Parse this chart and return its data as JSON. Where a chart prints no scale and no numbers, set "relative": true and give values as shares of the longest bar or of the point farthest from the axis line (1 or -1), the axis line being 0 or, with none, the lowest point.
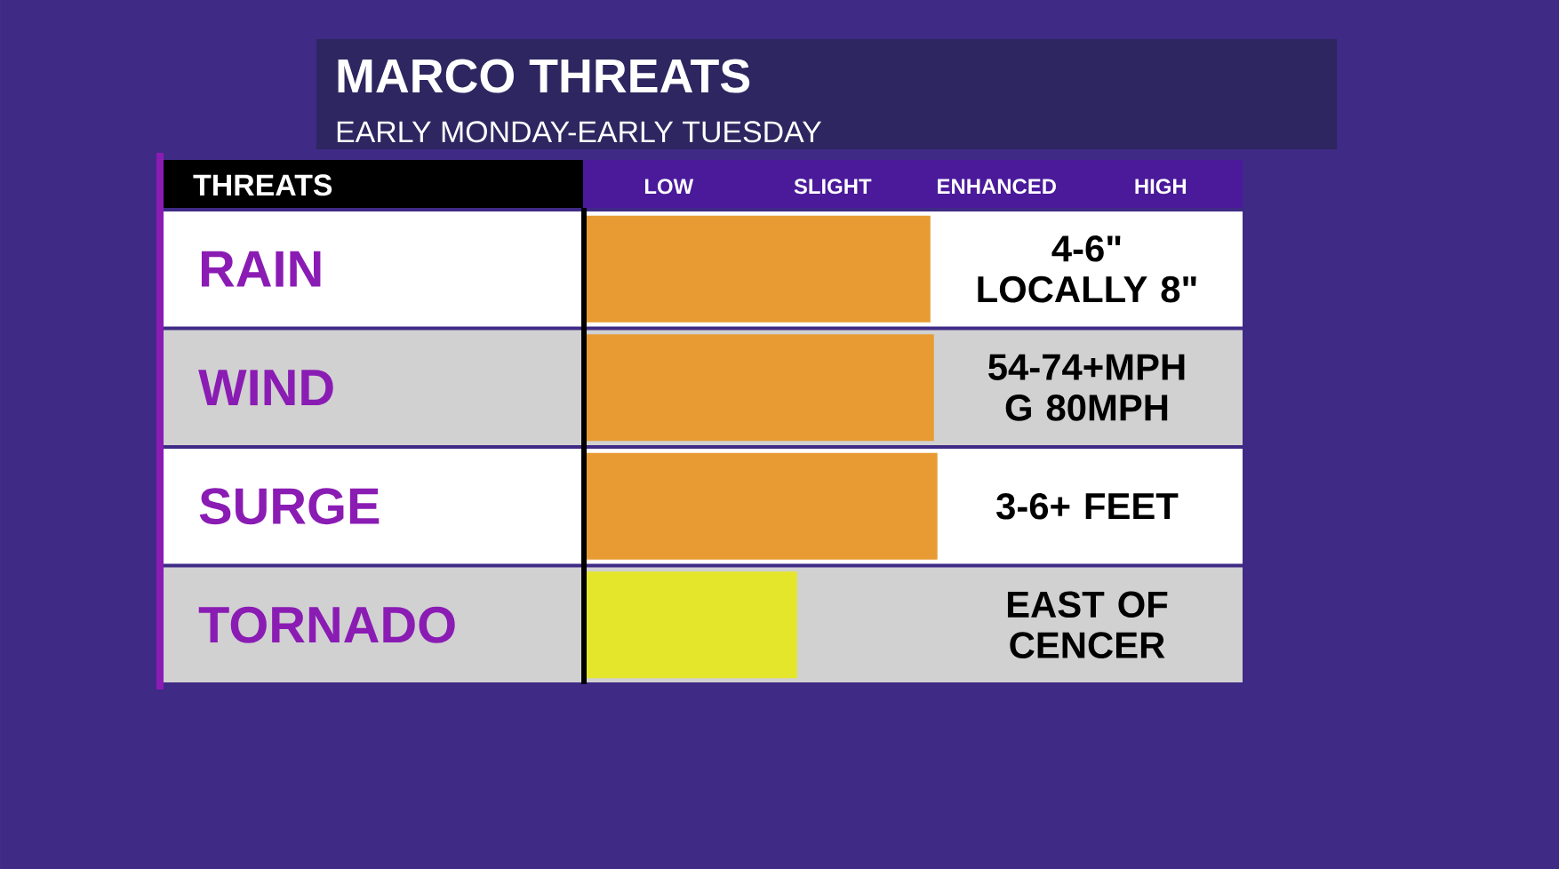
{
  "chart_data": {
    "type": "bar",
    "orientation": "horizontal",
    "title": "MARCO THREATS",
    "subtitle": "EARLY MONDAY-EARLY TUESDAY",
    "ylabel": "THREATS",
    "categories": [
      "RAIN",
      "WIND",
      "SURGE",
      "TORNADO"
    ],
    "values": [
      0.98,
      0.99,
      1,
      0.6
    ],
    "relative": true,
    "colors": [
      "#e89b32",
      "#e89b32",
      "#e89b32",
      "#e4e62c"
    ],
    "annotations": [
      "LOW",
      "SLIGHT",
      "ENHANCED",
      "HIGH",
      "4-6\" LOCALLY 8\"",
      "54-74+MPH G 80MPH",
      "3-6+ FEET",
      "EAST OF CENCER"
    ]
  }
}
